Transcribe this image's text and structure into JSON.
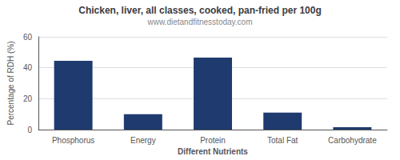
{
  "chart_data": {
    "type": "bar",
    "title": "Chicken, liver, all classes, cooked, pan-fried per 100g",
    "subtitle": "www.dietandfitnesstoday.com",
    "xlabel": "Different Nutrients",
    "ylabel": "Percentage of RDH (%)",
    "categories": [
      "Phosphorus",
      "Energy",
      "Protein",
      "Total Fat",
      "Carbohydrate"
    ],
    "values": [
      44.5,
      10.0,
      46.5,
      11.0,
      1.5
    ],
    "color": "#1f3a6e",
    "ylim": [
      0,
      60
    ],
    "yticks": [
      0,
      20,
      40,
      60
    ],
    "grid": true
  }
}
